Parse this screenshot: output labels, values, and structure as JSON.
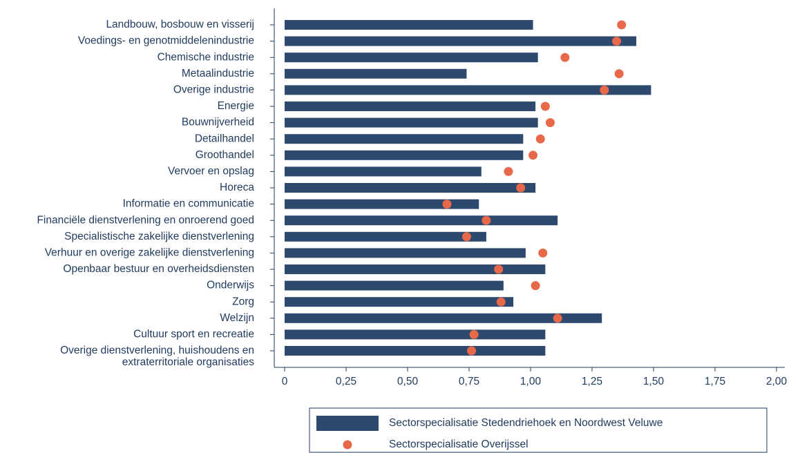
{
  "chart_data": {
    "type": "bar",
    "categories": [
      "Landbouw, bosbouw en visserij",
      "Voedings- en genotmiddelenindustrie",
      "Chemische industrie",
      "Metaalindustrie",
      "Overige industrie",
      "Energie",
      "Bouwnijverheid",
      "Detailhandel",
      "Groothandel",
      "Vervoer en opslag",
      "Horeca",
      "Informatie en communicatie",
      "Financiële dienstverlening en onroerend goed",
      "Specialistische zakelijke dienstverlening",
      "Verhuur en overige zakelijke dienstverlening",
      "Openbaar bestuur en overheidsdiensten",
      "Onderwijs",
      "Zorg",
      "Welzijn",
      "Cultuur sport en recreatie",
      "Overige dienstverlening, huishoudens en\nextraterritoriale organisaties"
    ],
    "series": [
      {
        "name": "Sectorspecialisatie Stedendriehoek en Noordwest Veluwe",
        "color": "#2d4a6e",
        "mark": "bar",
        "values": [
          1.01,
          1.43,
          1.03,
          0.74,
          1.49,
          1.02,
          1.03,
          0.97,
          0.97,
          0.8,
          1.02,
          0.79,
          1.11,
          0.82,
          0.98,
          1.06,
          0.89,
          0.93,
          1.29,
          1.06,
          1.06
        ]
      },
      {
        "name": "Sectorspecialisatie Overijssel",
        "color": "#e8694a",
        "mark": "dot",
        "values": [
          1.37,
          1.35,
          1.14,
          1.36,
          1.3,
          1.06,
          1.08,
          1.04,
          1.01,
          0.91,
          0.96,
          0.66,
          0.82,
          0.74,
          1.05,
          0.87,
          1.02,
          0.88,
          1.11,
          0.77,
          0.76
        ]
      }
    ],
    "xlim": [
      0,
      2
    ],
    "xticks": [
      0,
      {
        "value": 0.25,
        "label": "0,25"
      },
      {
        "value": 0.5,
        "label": "0,50"
      },
      {
        "value": 0.75,
        "label": "0,75"
      },
      {
        "value": 1,
        "label": "1,00"
      },
      {
        "value": 1.25,
        "label": "1,25"
      },
      {
        "value": 1.5,
        "label": "1,50"
      },
      {
        "value": 1.75,
        "label": "1,75"
      },
      {
        "value": 2,
        "label": "2,00"
      }
    ],
    "legend": "bottom"
  }
}
